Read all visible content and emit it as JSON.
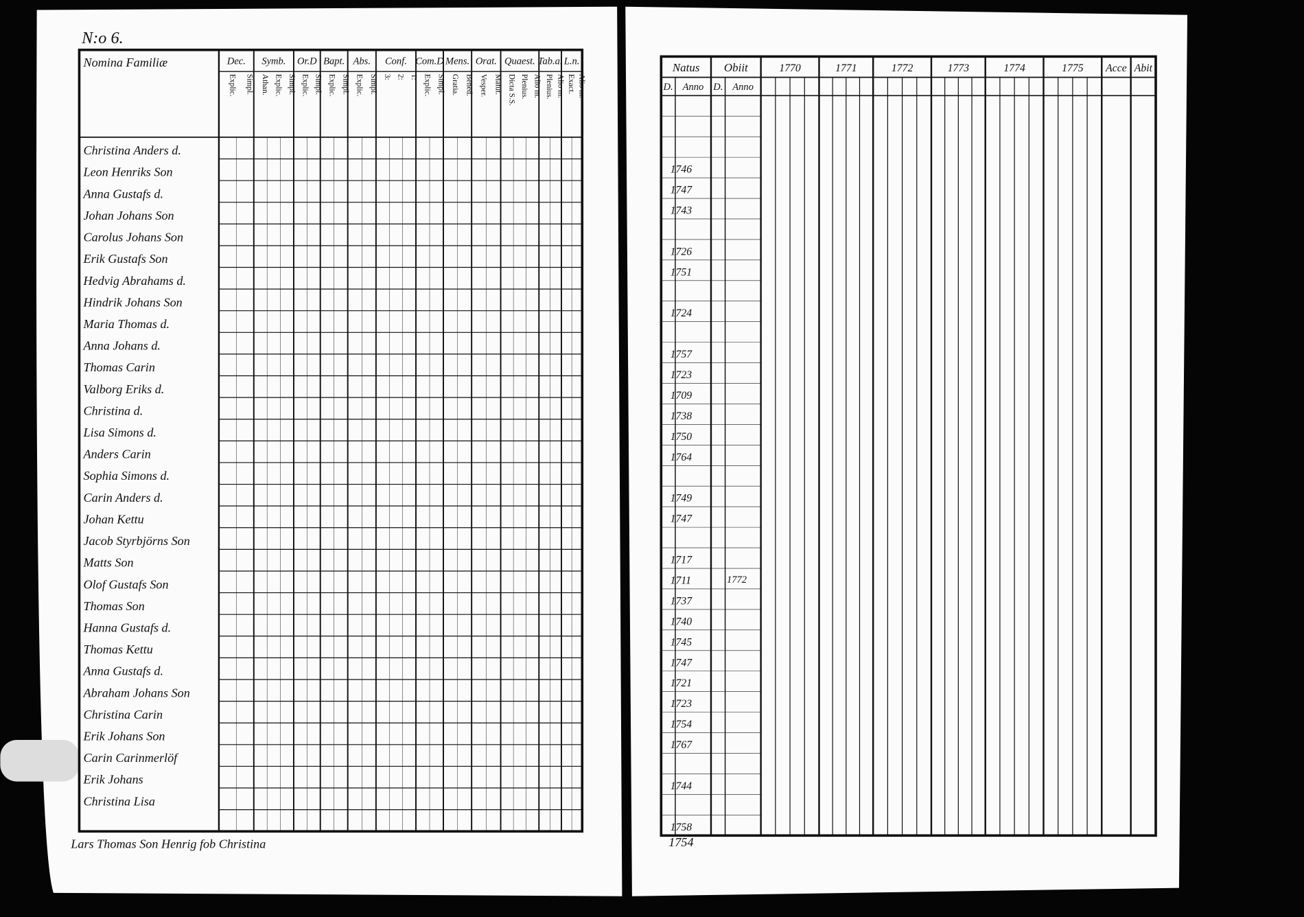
{
  "left_page": {
    "page_number": "N:o 6.",
    "name_header": "Nomina Familiæ",
    "columns": [
      {
        "title": "Dec.",
        "sub": [
          "Explic.",
          "Simpl."
        ]
      },
      {
        "title": "Symb.",
        "sub": [
          "Athan.",
          "Explic.",
          "Simpl."
        ]
      },
      {
        "title": "Or.D",
        "sub": [
          "Explic.",
          "Simpl."
        ]
      },
      {
        "title": "Bapt.",
        "sub": [
          "Explic.",
          "Simpl."
        ]
      },
      {
        "title": "Abs.",
        "sub": [
          "Explic.",
          "Simpl."
        ]
      },
      {
        "title": "Conf.",
        "sub": [
          "3:",
          "2:",
          "1:"
        ]
      },
      {
        "title": "Com.D",
        "sub": [
          "Explic.",
          "Simpl."
        ]
      },
      {
        "title": "Mens.",
        "sub": [
          "Gratia.",
          "Bened."
        ]
      },
      {
        "title": "Orat.",
        "sub": [
          "Vesper.",
          "Matut."
        ]
      },
      {
        "title": "Quaest.",
        "sub": [
          "Dicta S.S.",
          "Plenius.",
          "Alio m."
        ]
      },
      {
        "title": "Tab.a.",
        "sub": [
          "Plenius.",
          "Alio m."
        ]
      },
      {
        "title": "L.n.",
        "sub": [
          "Exact.",
          "Alio m."
        ]
      }
    ],
    "names": [
      "Christina Anders d.",
      "Leon Henriks Son",
      "Anna Gustafs d.",
      "Johan Johans Son",
      "Carolus Johans Son",
      "Erik Gustafs Son",
      "Hedvig Abrahams d.",
      "Hindrik Johans Son",
      "Maria Thomas d.",
      "Anna Johans d.",
      "Thomas Carin",
      "Valborg Eriks d.",
      "Christina d.",
      "Lisa Simons d.",
      "Anders Carin",
      "Sophia Simons d.",
      "Carin Anders d.",
      "Johan Kettu",
      "Jacob Styrbjörns Son",
      "Matts Son",
      "Olof Gustafs Son",
      "Thomas Son",
      "Hanna Gustafs d.",
      "Thomas Kettu",
      "Anna Gustafs d.",
      "Abraham Johans Son",
      "Christina Carin",
      "Erik Johans Son",
      "Carin Carinmerlöf",
      "Erik Johans",
      "Christina Lisa"
    ],
    "footer_note": "Lars Thomas Son   Henrig fob Christina"
  },
  "right_page": {
    "columns": [
      {
        "title": "Natus",
        "sub": [
          "D.",
          "Anno"
        ]
      },
      {
        "title": "Obiit",
        "sub": [
          "D.",
          "Anno"
        ]
      },
      {
        "title": "1770"
      },
      {
        "title": "1771"
      },
      {
        "title": "1772"
      },
      {
        "title": "1773"
      },
      {
        "title": "1774"
      },
      {
        "title": "1775"
      },
      {
        "title": "Acce"
      },
      {
        "title": "Abit"
      }
    ],
    "birth_years": [
      null,
      null,
      null,
      "1746",
      "1747",
      "1743",
      null,
      "1726",
      "1751",
      null,
      "1724",
      null,
      "1757",
      "1723",
      "1709",
      "1738",
      "1750",
      "1764",
      null,
      "1749",
      "1747",
      null,
      "1717",
      "1711",
      "1737",
      "1740",
      "1745",
      "1747",
      "1721",
      "1723",
      "1754",
      "1767",
      null,
      "1744",
      null,
      "1758"
    ],
    "death_year": "1772",
    "footer_note": "1754"
  }
}
